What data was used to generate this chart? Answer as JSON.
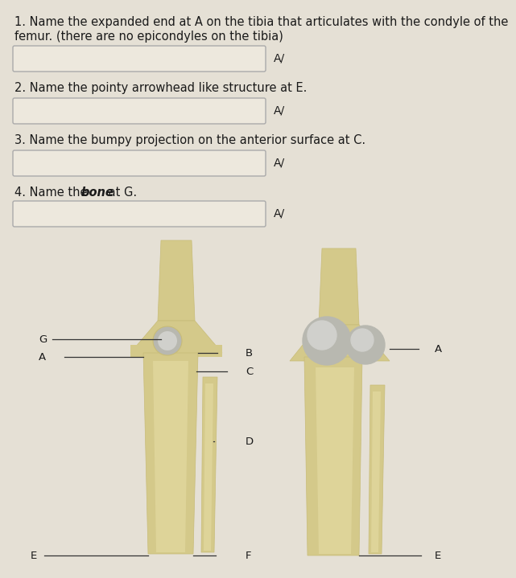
{
  "bg_color": "#e5e0d5",
  "text_color": "#1a1a1a",
  "box_fill": "#ede8dd",
  "box_edge": "#aaaaaa",
  "bone_light": "#d4c98a",
  "bone_mid": "#c8bc78",
  "bone_dark": "#b8aa68",
  "bone_inner": "#e8dfa8",
  "condyle_color": "#b8b8b0",
  "condyle_highlight": "#d0d0cc",
  "shadow_color": "#a89e70",
  "questions": [
    "1. Name the expanded end at A on the tibia that articulates with the condyle of the",
    "femur. (there are no epicondyles on the tibia)",
    "2. Name the pointy arrowhead like structure at E.",
    "3. Name the bumpy projection on the anterior surface at C.",
    "4. Name the "
  ],
  "q4_rest": " at G.",
  "font_size": 10.5,
  "label_font_size": 9.5
}
